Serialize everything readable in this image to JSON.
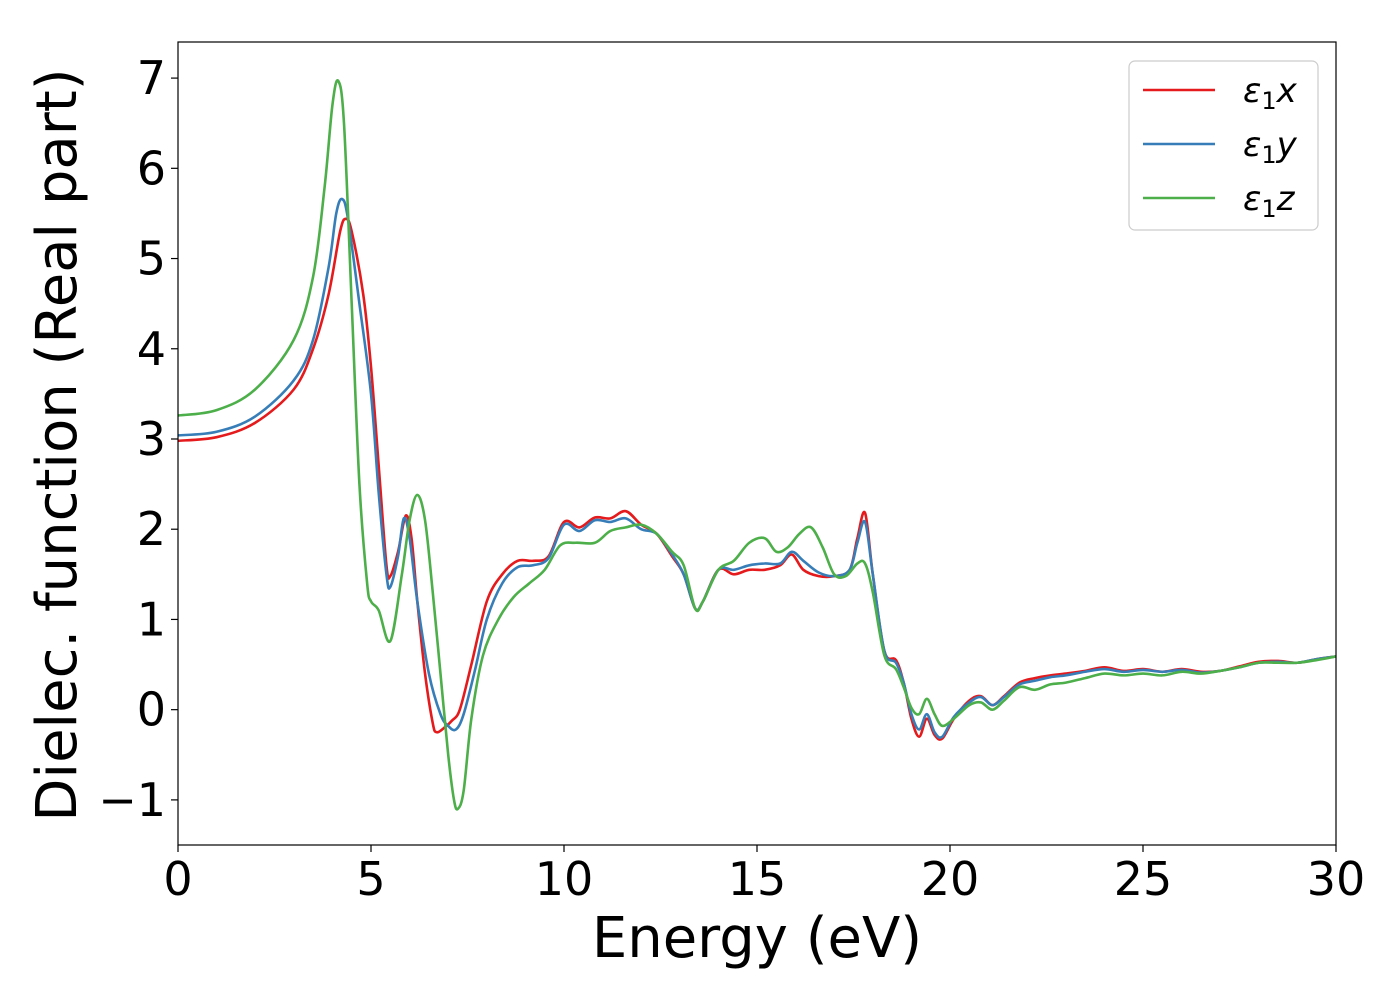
{
  "chart_data": {
    "type": "line",
    "title": "",
    "xlabel": "Energy (eV)",
    "ylabel": "Dielec. function (Real part)",
    "xlim": [
      0,
      30
    ],
    "ylim": [
      -1.5,
      7.4
    ],
    "xticks": [
      0,
      5,
      10,
      15,
      20,
      25,
      30
    ],
    "xtick_labels": [
      "0",
      "5",
      "10",
      "15",
      "20",
      "25",
      "30"
    ],
    "yticks": [
      -1,
      0,
      1,
      2,
      3,
      4,
      5,
      6,
      7
    ],
    "ytick_labels": [
      "−1",
      "0",
      "1",
      "2",
      "3",
      "4",
      "5",
      "6",
      "7"
    ],
    "grid": false,
    "legend": {
      "placement": "top-right"
    },
    "series": [
      {
        "name": "ε₁x",
        "legend_base": "ε",
        "legend_sub": "1",
        "legend_suffix": "x",
        "color": "#e41a1c",
        "points": [
          [
            0.0,
            2.98
          ],
          [
            1.0,
            3.02
          ],
          [
            2.0,
            3.18
          ],
          [
            3.0,
            3.55
          ],
          [
            3.5,
            4.0
          ],
          [
            3.9,
            4.6
          ],
          [
            4.2,
            5.3
          ],
          [
            4.35,
            5.44
          ],
          [
            4.5,
            5.3
          ],
          [
            4.8,
            4.6
          ],
          [
            5.0,
            3.8
          ],
          [
            5.2,
            2.7
          ],
          [
            5.4,
            1.6
          ],
          [
            5.5,
            1.48
          ],
          [
            5.7,
            1.75
          ],
          [
            5.9,
            2.15
          ],
          [
            6.05,
            1.9
          ],
          [
            6.2,
            1.2
          ],
          [
            6.4,
            0.4
          ],
          [
            6.6,
            -0.15
          ],
          [
            6.7,
            -0.25
          ],
          [
            6.9,
            -0.2
          ],
          [
            7.1,
            -0.12
          ],
          [
            7.3,
            0.0
          ],
          [
            7.6,
            0.5
          ],
          [
            8.0,
            1.2
          ],
          [
            8.4,
            1.5
          ],
          [
            8.8,
            1.65
          ],
          [
            9.2,
            1.65
          ],
          [
            9.6,
            1.7
          ],
          [
            10.0,
            2.08
          ],
          [
            10.4,
            2.02
          ],
          [
            10.8,
            2.13
          ],
          [
            11.2,
            2.12
          ],
          [
            11.6,
            2.2
          ],
          [
            12.0,
            2.05
          ],
          [
            12.4,
            1.95
          ],
          [
            12.8,
            1.7
          ],
          [
            13.1,
            1.5
          ],
          [
            13.4,
            1.12
          ],
          [
            13.6,
            1.2
          ],
          [
            14.0,
            1.55
          ],
          [
            14.4,
            1.5
          ],
          [
            14.8,
            1.55
          ],
          [
            15.2,
            1.55
          ],
          [
            15.6,
            1.6
          ],
          [
            15.9,
            1.72
          ],
          [
            16.2,
            1.55
          ],
          [
            16.6,
            1.48
          ],
          [
            17.0,
            1.48
          ],
          [
            17.4,
            1.55
          ],
          [
            17.6,
            1.9
          ],
          [
            17.8,
            2.18
          ],
          [
            18.0,
            1.5
          ],
          [
            18.3,
            0.65
          ],
          [
            18.6,
            0.55
          ],
          [
            18.8,
            0.3
          ],
          [
            19.0,
            -0.1
          ],
          [
            19.2,
            -0.3
          ],
          [
            19.4,
            -0.1
          ],
          [
            19.6,
            -0.28
          ],
          [
            19.8,
            -0.32
          ],
          [
            20.1,
            -0.1
          ],
          [
            20.5,
            0.1
          ],
          [
            20.8,
            0.15
          ],
          [
            21.1,
            0.05
          ],
          [
            21.4,
            0.15
          ],
          [
            21.8,
            0.3
          ],
          [
            22.2,
            0.35
          ],
          [
            22.6,
            0.38
          ],
          [
            23.0,
            0.4
          ],
          [
            23.5,
            0.43
          ],
          [
            24.0,
            0.47
          ],
          [
            24.5,
            0.43
          ],
          [
            25.0,
            0.45
          ],
          [
            25.5,
            0.42
          ],
          [
            26.0,
            0.45
          ],
          [
            26.5,
            0.42
          ],
          [
            27.0,
            0.43
          ],
          [
            27.5,
            0.48
          ],
          [
            28.0,
            0.53
          ],
          [
            28.5,
            0.54
          ],
          [
            29.0,
            0.52
          ],
          [
            29.5,
            0.56
          ],
          [
            30.0,
            0.59
          ]
        ]
      },
      {
        "name": "ε₁y",
        "legend_base": "ε",
        "legend_sub": "1",
        "legend_suffix": "y",
        "color": "#377eb8",
        "points": [
          [
            0.0,
            3.04
          ],
          [
            1.0,
            3.08
          ],
          [
            2.0,
            3.25
          ],
          [
            3.0,
            3.65
          ],
          [
            3.5,
            4.1
          ],
          [
            3.9,
            4.9
          ],
          [
            4.1,
            5.5
          ],
          [
            4.25,
            5.66
          ],
          [
            4.4,
            5.45
          ],
          [
            4.7,
            4.5
          ],
          [
            5.0,
            3.5
          ],
          [
            5.2,
            2.4
          ],
          [
            5.4,
            1.5
          ],
          [
            5.5,
            1.36
          ],
          [
            5.7,
            1.7
          ],
          [
            5.85,
            2.12
          ],
          [
            6.0,
            1.9
          ],
          [
            6.2,
            1.2
          ],
          [
            6.5,
            0.4
          ],
          [
            6.8,
            -0.05
          ],
          [
            7.0,
            -0.18
          ],
          [
            7.2,
            -0.22
          ],
          [
            7.4,
            -0.05
          ],
          [
            7.7,
            0.45
          ],
          [
            8.0,
            1.0
          ],
          [
            8.4,
            1.4
          ],
          [
            8.8,
            1.58
          ],
          [
            9.2,
            1.6
          ],
          [
            9.6,
            1.68
          ],
          [
            10.0,
            2.05
          ],
          [
            10.4,
            1.98
          ],
          [
            10.8,
            2.1
          ],
          [
            11.2,
            2.08
          ],
          [
            11.6,
            2.12
          ],
          [
            12.0,
            2.0
          ],
          [
            12.4,
            1.95
          ],
          [
            12.8,
            1.72
          ],
          [
            13.1,
            1.5
          ],
          [
            13.4,
            1.12
          ],
          [
            13.6,
            1.2
          ],
          [
            14.0,
            1.55
          ],
          [
            14.4,
            1.55
          ],
          [
            14.8,
            1.6
          ],
          [
            15.2,
            1.62
          ],
          [
            15.6,
            1.62
          ],
          [
            15.9,
            1.75
          ],
          [
            16.2,
            1.65
          ],
          [
            16.6,
            1.52
          ],
          [
            17.0,
            1.48
          ],
          [
            17.4,
            1.55
          ],
          [
            17.6,
            1.85
          ],
          [
            17.8,
            2.08
          ],
          [
            18.0,
            1.5
          ],
          [
            18.3,
            0.65
          ],
          [
            18.6,
            0.52
          ],
          [
            18.8,
            0.3
          ],
          [
            19.0,
            -0.05
          ],
          [
            19.2,
            -0.22
          ],
          [
            19.4,
            -0.05
          ],
          [
            19.6,
            -0.25
          ],
          [
            19.8,
            -0.3
          ],
          [
            20.1,
            -0.08
          ],
          [
            20.5,
            0.08
          ],
          [
            20.8,
            0.14
          ],
          [
            21.1,
            0.05
          ],
          [
            21.4,
            0.14
          ],
          [
            21.8,
            0.28
          ],
          [
            22.2,
            0.32
          ],
          [
            22.6,
            0.36
          ],
          [
            23.0,
            0.38
          ],
          [
            23.5,
            0.42
          ],
          [
            24.0,
            0.45
          ],
          [
            24.5,
            0.42
          ],
          [
            25.0,
            0.44
          ],
          [
            25.5,
            0.42
          ],
          [
            26.0,
            0.44
          ],
          [
            26.5,
            0.41
          ],
          [
            27.0,
            0.43
          ],
          [
            27.5,
            0.47
          ],
          [
            28.0,
            0.52
          ],
          [
            28.5,
            0.53
          ],
          [
            29.0,
            0.52
          ],
          [
            29.5,
            0.56
          ],
          [
            30.0,
            0.59
          ]
        ]
      },
      {
        "name": "ε₁z",
        "legend_base": "ε",
        "legend_sub": "1",
        "legend_suffix": "z",
        "color": "#4daf4a",
        "points": [
          [
            0.0,
            3.26
          ],
          [
            1.0,
            3.32
          ],
          [
            2.0,
            3.55
          ],
          [
            3.0,
            4.1
          ],
          [
            3.5,
            4.8
          ],
          [
            3.8,
            5.8
          ],
          [
            4.0,
            6.7
          ],
          [
            4.15,
            6.97
          ],
          [
            4.3,
            6.5
          ],
          [
            4.5,
            4.5
          ],
          [
            4.7,
            2.5
          ],
          [
            4.9,
            1.4
          ],
          [
            5.0,
            1.2
          ],
          [
            5.2,
            1.1
          ],
          [
            5.5,
            0.76
          ],
          [
            5.8,
            1.5
          ],
          [
            6.0,
            2.1
          ],
          [
            6.2,
            2.38
          ],
          [
            6.4,
            2.1
          ],
          [
            6.6,
            1.3
          ],
          [
            6.8,
            0.4
          ],
          [
            7.0,
            -0.5
          ],
          [
            7.15,
            -1.0
          ],
          [
            7.25,
            -1.1
          ],
          [
            7.4,
            -0.9
          ],
          [
            7.6,
            -0.1
          ],
          [
            7.9,
            0.6
          ],
          [
            8.3,
            1.0
          ],
          [
            8.7,
            1.25
          ],
          [
            9.1,
            1.4
          ],
          [
            9.5,
            1.55
          ],
          [
            9.9,
            1.82
          ],
          [
            10.3,
            1.85
          ],
          [
            10.8,
            1.85
          ],
          [
            11.2,
            1.98
          ],
          [
            11.6,
            2.02
          ],
          [
            12.0,
            2.05
          ],
          [
            12.4,
            1.95
          ],
          [
            12.8,
            1.75
          ],
          [
            13.1,
            1.6
          ],
          [
            13.4,
            1.12
          ],
          [
            13.6,
            1.2
          ],
          [
            14.0,
            1.55
          ],
          [
            14.4,
            1.65
          ],
          [
            14.8,
            1.85
          ],
          [
            15.2,
            1.9
          ],
          [
            15.5,
            1.75
          ],
          [
            15.8,
            1.8
          ],
          [
            16.1,
            1.95
          ],
          [
            16.4,
            2.02
          ],
          [
            16.7,
            1.8
          ],
          [
            17.0,
            1.5
          ],
          [
            17.3,
            1.48
          ],
          [
            17.6,
            1.62
          ],
          [
            17.8,
            1.62
          ],
          [
            18.0,
            1.3
          ],
          [
            18.3,
            0.6
          ],
          [
            18.6,
            0.45
          ],
          [
            18.8,
            0.25
          ],
          [
            19.0,
            0.02
          ],
          [
            19.2,
            -0.05
          ],
          [
            19.4,
            0.12
          ],
          [
            19.6,
            -0.05
          ],
          [
            19.8,
            -0.18
          ],
          [
            20.1,
            -0.1
          ],
          [
            20.5,
            0.05
          ],
          [
            20.8,
            0.08
          ],
          [
            21.1,
            0.0
          ],
          [
            21.4,
            0.1
          ],
          [
            21.8,
            0.25
          ],
          [
            22.2,
            0.22
          ],
          [
            22.6,
            0.28
          ],
          [
            23.0,
            0.3
          ],
          [
            23.5,
            0.35
          ],
          [
            24.0,
            0.4
          ],
          [
            24.5,
            0.38
          ],
          [
            25.0,
            0.4
          ],
          [
            25.5,
            0.38
          ],
          [
            26.0,
            0.42
          ],
          [
            26.5,
            0.4
          ],
          [
            27.0,
            0.43
          ],
          [
            27.5,
            0.47
          ],
          [
            28.0,
            0.52
          ],
          [
            28.5,
            0.52
          ],
          [
            29.0,
            0.52
          ],
          [
            29.5,
            0.55
          ],
          [
            30.0,
            0.59
          ]
        ]
      }
    ]
  }
}
